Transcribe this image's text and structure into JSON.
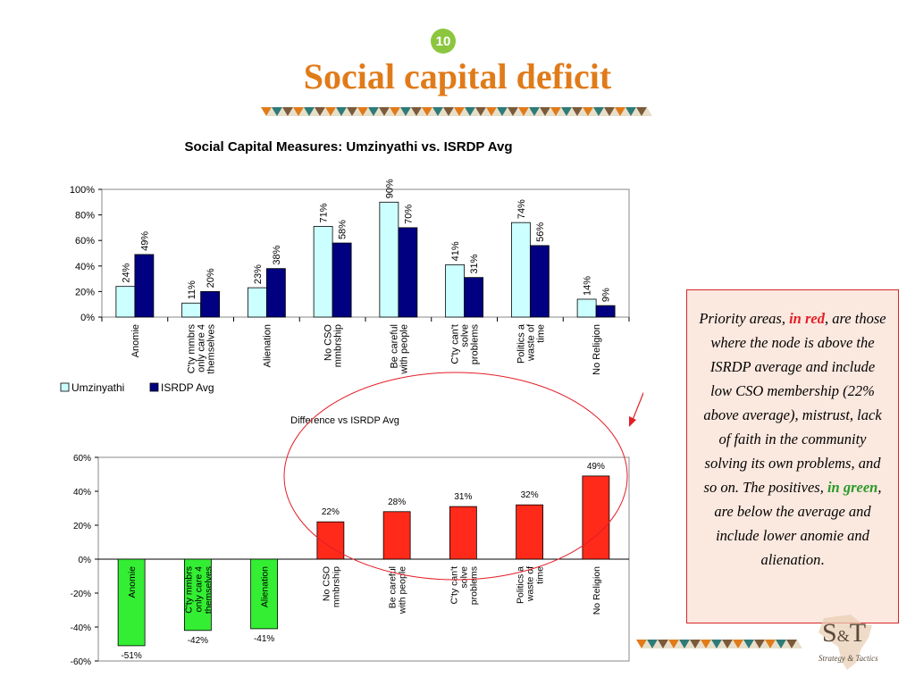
{
  "slide": {
    "number": "10",
    "title": "Social capital deficit"
  },
  "colors": {
    "title": "#e07b1a",
    "umzinyathi": "#ccffff",
    "isrdp": "#000080",
    "positive": "#ff2a1a",
    "negative": "#33ee33"
  },
  "callout": {
    "part1": "Priority areas, ",
    "red_text": "in red",
    "part2": ", are those where the node is above the ISRDP average and include low CSO membership (22% above average), mistrust, lack of faith in the community solving its own problems, and so on. The positives, ",
    "green_text": "in green",
    "part3": ", are below the average and include lower anomie and alienation",
    "end": "."
  },
  "logo": {
    "text_s": "S",
    "text_amp": "&",
    "text_t": "T",
    "tagline": "Strategy & Tactics"
  },
  "chart_data": [
    {
      "type": "bar",
      "title": "Social Capital Measures: Umzinyathi  vs. ISRDP Avg",
      "categories": [
        [
          "Anomie"
        ],
        [
          "C'ty mmbrs",
          "only care 4",
          "themselves"
        ],
        [
          "Alienation"
        ],
        [
          "No CSO",
          "mmbrship"
        ],
        [
          "Be careful",
          "with people"
        ],
        [
          "C'ty can't",
          "solve",
          "problems"
        ],
        [
          "Politics a",
          "waste of",
          "time"
        ],
        [
          "No Religion"
        ]
      ],
      "series": [
        {
          "name": "Umzinyathi",
          "values": [
            24,
            11,
            23,
            71,
            90,
            41,
            74,
            14
          ],
          "labels": [
            "24%",
            "11%",
            "23%",
            "71%",
            "90%",
            "41%",
            "74%",
            "14%"
          ]
        },
        {
          "name": "ISRDP Avg",
          "values": [
            49,
            20,
            38,
            58,
            70,
            31,
            56,
            9
          ],
          "labels": [
            "49%",
            "20%",
            "38%",
            "58%",
            "70%",
            "31%",
            "56%",
            "9%"
          ]
        }
      ],
      "ylim": [
        0,
        100
      ],
      "yticks": [
        "0%",
        "20%",
        "40%",
        "60%",
        "80%",
        "100%"
      ],
      "legend_position": "bottom-left",
      "grid": false
    },
    {
      "type": "bar",
      "title": "Difference vs ISRDP Avg",
      "categories": [
        [
          "Anomie"
        ],
        [
          "C'ty mmbrs",
          "only care 4",
          "themselves"
        ],
        [
          "Alienation"
        ],
        [
          "No CSO",
          "mmbrship"
        ],
        [
          "Be careful",
          "with people"
        ],
        [
          "C'ty can't",
          "solve",
          "problems"
        ],
        [
          "Politics a",
          "waste of",
          "time"
        ],
        [
          "No Religion"
        ]
      ],
      "values": [
        -51,
        -42,
        -41,
        22,
        28,
        31,
        32,
        49
      ],
      "labels": [
        "-51%",
        "-42%",
        "-41%",
        "22%",
        "28%",
        "31%",
        "32%",
        "49%"
      ],
      "ylim": [
        -60,
        60
      ],
      "yticks": [
        "-60%",
        "-40%",
        "-20%",
        "0%",
        "20%",
        "40%",
        "60%"
      ],
      "grid": false
    }
  ]
}
